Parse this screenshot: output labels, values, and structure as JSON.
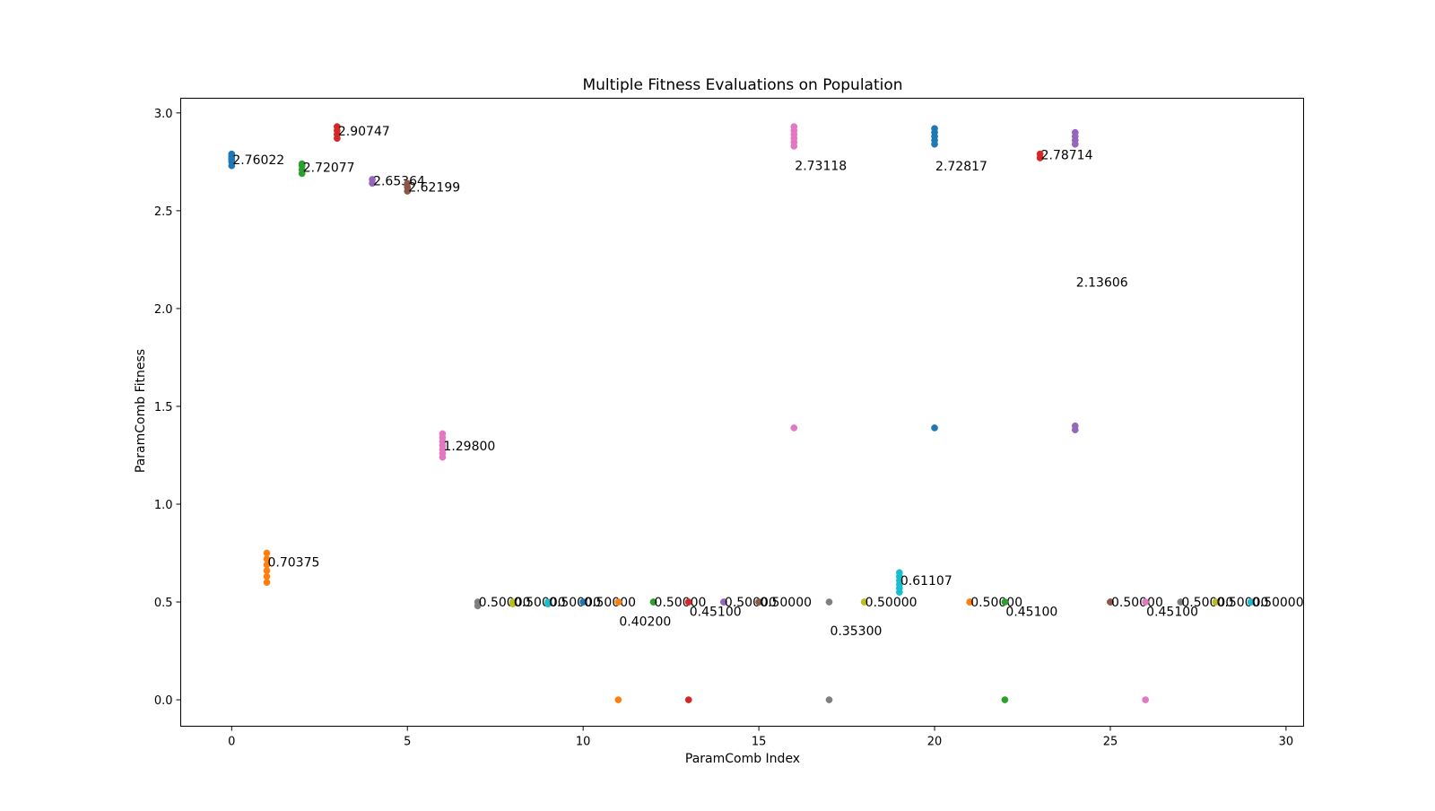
{
  "chart_data": {
    "type": "scatter",
    "title": "Multiple Fitness Evaluations on Population",
    "xlabel": "ParamComb Index",
    "ylabel": "ParamComb Fitness",
    "xlim": [
      -1.45,
      30.5
    ],
    "ylim": [
      -0.135,
      3.075
    ],
    "xticks": [
      0,
      5,
      10,
      15,
      20,
      25,
      30
    ],
    "xtick_labels": [
      "0",
      "5",
      "10",
      "15",
      "20",
      "25",
      "30"
    ],
    "yticks": [
      0.0,
      0.5,
      1.0,
      1.5,
      2.0,
      2.5,
      3.0
    ],
    "ytick_labels": [
      "0.0",
      "0.5",
      "1.0",
      "1.5",
      "2.0",
      "2.5",
      "3.0"
    ],
    "grid": false,
    "legend": "none",
    "colors": [
      "#1f77b4",
      "#ff7f0e",
      "#2ca02c",
      "#d62728",
      "#9467bd",
      "#8c564b",
      "#e377c2",
      "#7f7f7f",
      "#bcbd22",
      "#17becf"
    ],
    "series": [
      {
        "index": 0,
        "color": "#1f77b4",
        "values": [
          2.73,
          2.75,
          2.76,
          2.77,
          2.78,
          2.79
        ],
        "mean_label": "2.76022",
        "label_y": 2.76022
      },
      {
        "index": 1,
        "color": "#ff7f0e",
        "values": [
          0.6,
          0.63,
          0.66,
          0.69,
          0.72,
          0.75
        ],
        "mean_label": "0.70375",
        "label_y": 0.70375
      },
      {
        "index": 2,
        "color": "#2ca02c",
        "values": [
          2.69,
          2.71,
          2.73,
          2.74
        ],
        "mean_label": "2.72077",
        "label_y": 2.72077
      },
      {
        "index": 3,
        "color": "#d62728",
        "values": [
          2.87,
          2.89,
          2.91,
          2.93
        ],
        "mean_label": "2.90747",
        "label_y": 2.90747
      },
      {
        "index": 4,
        "color": "#9467bd",
        "values": [
          2.64,
          2.66
        ],
        "mean_label": "2.65364",
        "label_y": 2.65364
      },
      {
        "index": 5,
        "color": "#8c564b",
        "values": [
          2.6,
          2.62,
          2.64
        ],
        "mean_label": "2.62199",
        "label_y": 2.62199
      },
      {
        "index": 6,
        "color": "#e377c2",
        "values": [
          1.24,
          1.26,
          1.28,
          1.3,
          1.32,
          1.34,
          1.36
        ],
        "mean_label": "1.29800",
        "label_y": 1.298
      },
      {
        "index": 7,
        "color": "#7f7f7f",
        "values": [
          0.48,
          0.5
        ],
        "mean_label": "0.50000",
        "label_y": 0.5
      },
      {
        "index": 8,
        "color": "#bcbd22",
        "values": [
          0.49,
          0.5
        ],
        "mean_label": "0.50000",
        "label_y": 0.5
      },
      {
        "index": 9,
        "color": "#17becf",
        "values": [
          0.49,
          0.5
        ],
        "mean_label": "0.50000",
        "label_y": 0.5
      },
      {
        "index": 10,
        "color": "#1f77b4",
        "values": [
          0.5,
          0.5
        ],
        "mean_label": "0.50000",
        "label_y": 0.5
      },
      {
        "index": 11,
        "color": "#ff7f0e",
        "values": [
          0.0,
          0.5,
          0.5
        ],
        "mean_label": "0.40200",
        "label_y": 0.402
      },
      {
        "index": 12,
        "color": "#2ca02c",
        "values": [
          0.5,
          0.5
        ],
        "mean_label": "0.50000",
        "label_y": 0.5
      },
      {
        "index": 13,
        "color": "#d62728",
        "values": [
          0.0,
          0.5,
          0.5
        ],
        "mean_label": "0.45100",
        "label_y": 0.451
      },
      {
        "index": 14,
        "color": "#9467bd",
        "values": [
          0.5,
          0.5
        ],
        "mean_label": "0.50000",
        "label_y": 0.5
      },
      {
        "index": 15,
        "color": "#8c564b",
        "values": [
          0.5,
          0.5
        ],
        "mean_label": "0.50000",
        "label_y": 0.5
      },
      {
        "index": 16,
        "color": "#e377c2",
        "values": [
          1.39,
          2.83,
          2.85,
          2.87,
          2.89,
          2.91,
          2.93
        ],
        "mean_label": "2.73118",
        "label_y": 2.73118
      },
      {
        "index": 17,
        "color": "#7f7f7f",
        "values": [
          0.0,
          0.5
        ],
        "mean_label": "0.35300",
        "label_y": 0.353
      },
      {
        "index": 18,
        "color": "#bcbd22",
        "values": [
          0.5,
          0.5
        ],
        "mean_label": "0.50000",
        "label_y": 0.5
      },
      {
        "index": 19,
        "color": "#17becf",
        "values": [
          0.55,
          0.57,
          0.59,
          0.61,
          0.63,
          0.65
        ],
        "mean_label": "0.61107",
        "label_y": 0.61107
      },
      {
        "index": 20,
        "color": "#1f77b4",
        "values": [
          1.39,
          2.84,
          2.86,
          2.88,
          2.9,
          2.92
        ],
        "mean_label": "2.72817",
        "label_y": 2.72817
      },
      {
        "index": 21,
        "color": "#ff7f0e",
        "values": [
          0.5,
          0.5
        ],
        "mean_label": "0.50000",
        "label_y": 0.5
      },
      {
        "index": 22,
        "color": "#2ca02c",
        "values": [
          0.0,
          0.5
        ],
        "mean_label": "0.45100",
        "label_y": 0.451
      },
      {
        "index": 23,
        "color": "#d62728",
        "values": [
          2.77,
          2.79
        ],
        "mean_label": "2.78714",
        "label_y": 2.78714
      },
      {
        "index": 24,
        "color": "#9467bd",
        "values": [
          1.38,
          1.4,
          2.84,
          2.86,
          2.88,
          2.9
        ],
        "mean_label": "2.13606",
        "label_y": 2.13606
      },
      {
        "index": 25,
        "color": "#8c564b",
        "values": [
          0.5,
          0.5
        ],
        "mean_label": "0.50000",
        "label_y": 0.5
      },
      {
        "index": 26,
        "color": "#e377c2",
        "values": [
          0.0,
          0.5
        ],
        "mean_label": "0.45100",
        "label_y": 0.451
      },
      {
        "index": 27,
        "color": "#7f7f7f",
        "values": [
          0.5,
          0.5
        ],
        "mean_label": "0.50000",
        "label_y": 0.5
      },
      {
        "index": 28,
        "color": "#bcbd22",
        "values": [
          0.5,
          0.5
        ],
        "mean_label": "0.50000",
        "label_y": 0.5
      },
      {
        "index": 29,
        "color": "#17becf",
        "values": [
          0.5,
          0.5
        ],
        "mean_label": "0.50000",
        "label_y": 0.5
      }
    ]
  }
}
